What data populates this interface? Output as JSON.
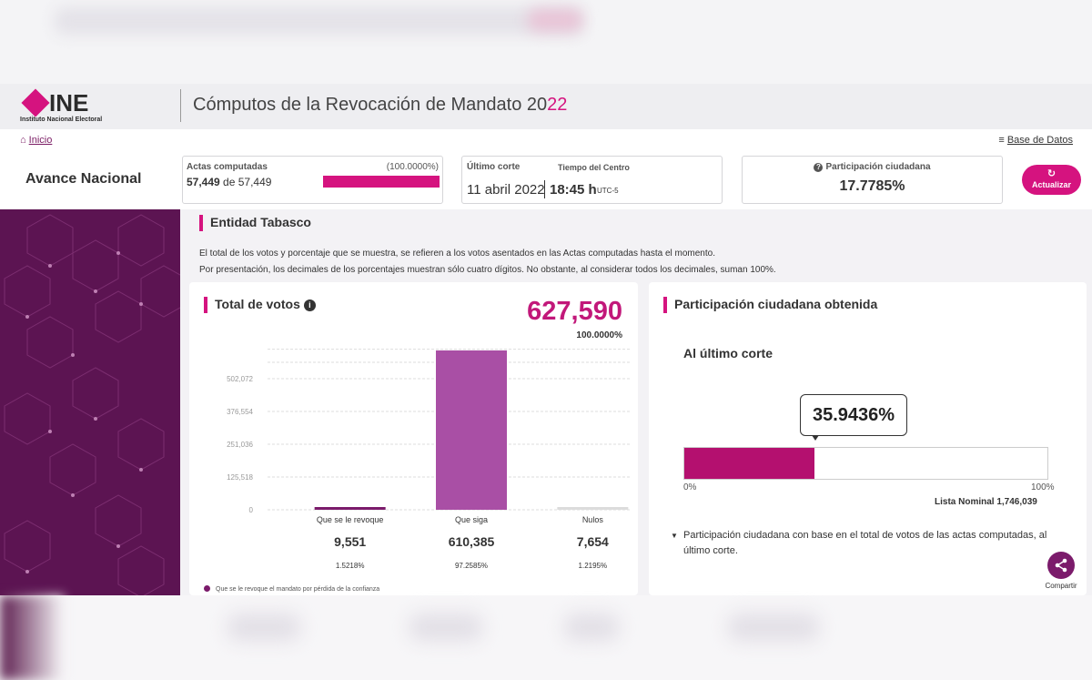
{
  "header": {
    "logo_text": "INE",
    "logo_sub": "Instituto Nacional Electoral",
    "title_main": "Cómputos de la Revocación de Mandato 20",
    "title_accent": "22"
  },
  "nav": {
    "home": "Inicio",
    "database": "Base de Datos"
  },
  "summary": {
    "section": "Avance Nacional",
    "actas_label": "Actas computadas",
    "actas_pct": "(100.0000%)",
    "actas_count": "57,449",
    "actas_of": "de 57,449",
    "actas_progress": 1.0,
    "corte_label": "Último corte",
    "centro_label": "Tiempo del Centro",
    "corte_date": "11 abril 2022",
    "corte_time": "18:45 h",
    "corte_tz": "UTC-5",
    "participacion_label": "Participación ciudadana",
    "participacion_value": "17.7785%",
    "refresh_label": "Actualizar"
  },
  "entity": {
    "title": "Entidad Tabasco",
    "note1": "El total de los votos y porcentaje que se muestra, se refieren a los votos asentados en las Actas computadas hasta el momento.",
    "note2": "Por presentación, los decimales de los porcentajes muestran sólo cuatro dígitos. No obstante, al considerar todos los decimales, suman 100%."
  },
  "votes_panel": {
    "title": "Total de votos",
    "total": "627,590",
    "total_pct": "100.0000%",
    "legend": "Que se le revoque el mandato por pérdida de la confianza"
  },
  "chart_data": {
    "type": "bar",
    "categories": [
      "Que se le revoque",
      "Que siga",
      "Nulos"
    ],
    "values": [
      9551,
      610385,
      7654
    ],
    "value_labels": [
      "9,551",
      "610,385",
      "7,654"
    ],
    "pct_labels": [
      "1.5218%",
      "97.2585%",
      "1.2195%"
    ],
    "colors": [
      "#7b1b6b",
      "#a94fa5",
      "#dcdcdc"
    ],
    "yticks": [
      0,
      125518,
      251036,
      376554,
      502072
    ],
    "ytick_labels": [
      "0",
      "125,518",
      "251,036",
      "376,554",
      "502,072"
    ],
    "ylim": [
      0,
      627590
    ],
    "grid": true
  },
  "participation_panel": {
    "title": "Participación ciudadana obtenida",
    "subtitle": "Al último corte",
    "value": "35.9436%",
    "fraction": 0.359436,
    "min_label": "0%",
    "max_label": "100%",
    "lista_nominal": "Lista Nominal 1,746,039",
    "note": "Participación ciudadana con base en el total de votos de las actas computadas, al último corte."
  },
  "share": {
    "label": "Compartir"
  },
  "colors": {
    "accent": "#d5137f",
    "brand_purple": "#5c1452"
  }
}
